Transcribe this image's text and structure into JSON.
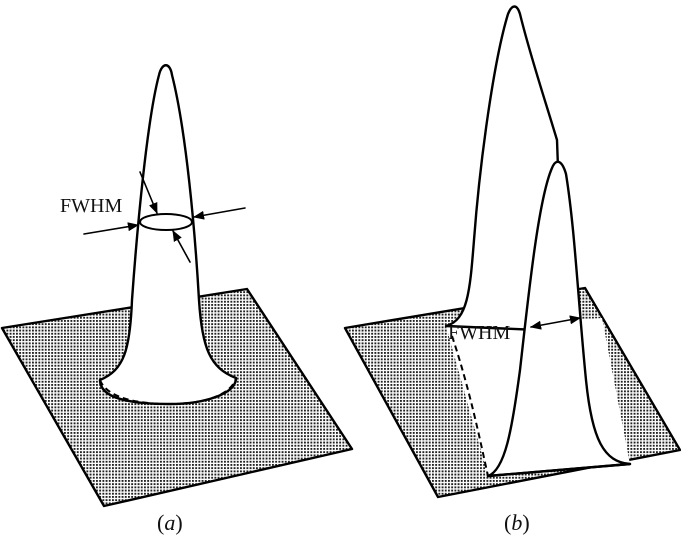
{
  "panels": [
    {
      "id": "a",
      "caption": [
        "(",
        "a",
        ")"
      ],
      "annotation": "FWHM"
    },
    {
      "id": "b",
      "caption": [
        "(",
        "b",
        ")"
      ],
      "annotation": "FWHM"
    }
  ],
  "colors": {
    "ink": "#000000",
    "background": "#ffffff"
  }
}
